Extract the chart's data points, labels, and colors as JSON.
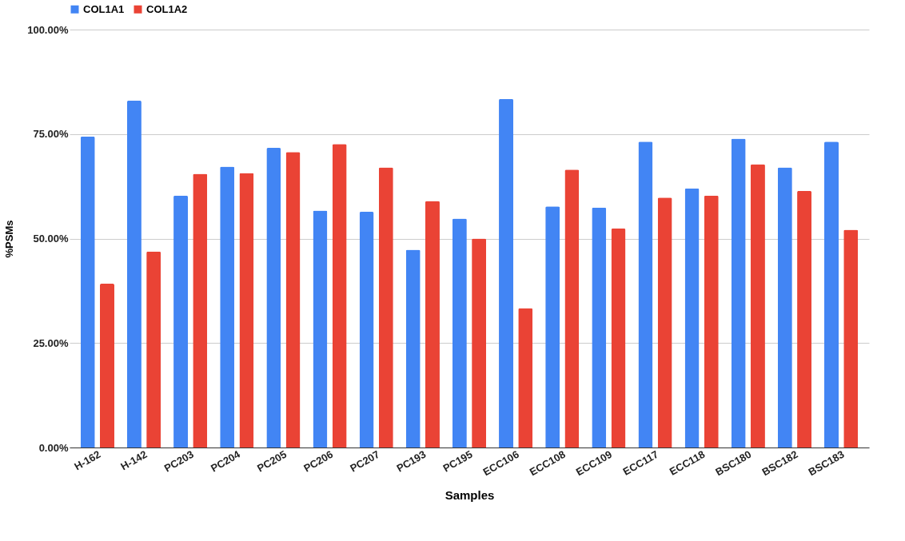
{
  "chart_data": {
    "type": "bar",
    "xlabel": "Samples",
    "ylabel": "%PSMs",
    "categories": [
      "H-162",
      "H-142",
      "PC203",
      "PC204",
      "PC205",
      "PC206",
      "PC207",
      "PC193",
      "PC195",
      "ECC106",
      "ECC108",
      "ECC109",
      "ECC117",
      "ECC118",
      "BSC180",
      "BSC182",
      "BSC183"
    ],
    "series": [
      {
        "name": "COL1A1",
        "color": "#4285f4",
        "values": [
          74.4,
          83.0,
          60.3,
          67.2,
          71.7,
          56.7,
          56.4,
          47.3,
          54.8,
          83.4,
          57.7,
          57.4,
          73.2,
          62.0,
          73.9,
          67.0,
          73.2
        ]
      },
      {
        "name": "COL1A2",
        "color": "#ea4335",
        "values": [
          39.2,
          46.9,
          65.5,
          65.7,
          70.7,
          72.6,
          67.0,
          59.0,
          50.0,
          33.3,
          66.5,
          52.4,
          59.8,
          60.3,
          67.8,
          61.4,
          52.1
        ]
      }
    ],
    "ylim": [
      0,
      100
    ],
    "yticks": [
      {
        "value": 0,
        "label": "0.00%"
      },
      {
        "value": 25,
        "label": "25.00%"
      },
      {
        "value": 50,
        "label": "50.00%"
      },
      {
        "value": 75,
        "label": "75.00%"
      },
      {
        "value": 100,
        "label": "100.00%"
      }
    ],
    "grid": "y",
    "legend": "top"
  }
}
